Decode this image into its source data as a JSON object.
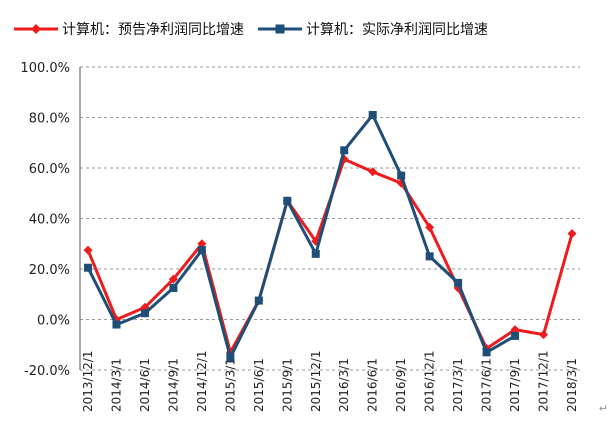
{
  "chart_data": {
    "type": "line",
    "title": "",
    "xlabel": "",
    "ylabel": "",
    "categories": [
      "2013/12/1",
      "2014/3/1",
      "2014/6/1",
      "2014/9/1",
      "2014/12/1",
      "2015/3/1",
      "2015/6/1",
      "2015/9/1",
      "2015/12/1",
      "2016/3/1",
      "2016/6/1",
      "2016/9/1",
      "2016/12/1",
      "2017/3/1",
      "2017/6/1",
      "2017/9/1",
      "2017/12/1",
      "2018/3/1"
    ],
    "yticks": [
      "100.0%",
      "80.0%",
      "60.0%",
      "40.0%",
      "20.0%",
      "0.0%",
      "-20.0%"
    ],
    "ylim": [
      -20,
      100
    ],
    "y_unit": "%",
    "grid": "horizontal dashed",
    "legend_position": "top",
    "series": [
      {
        "name": "计算机：预告净利润同比增速",
        "color": "#ee1c1c",
        "marker": "diamond",
        "values": [
          27.5,
          0,
          4.8,
          16,
          30,
          -13,
          7.5,
          47,
          31,
          63.5,
          58.5,
          54,
          36.5,
          12.5,
          -11.5,
          -4,
          -6,
          34
        ]
      },
      {
        "name": "计算机：实际净利润同比增速",
        "color": "#1f4e79",
        "marker": "square",
        "values": [
          20.5,
          -2,
          2.5,
          12.5,
          27.5,
          -15,
          7.5,
          47,
          26,
          67,
          81,
          57,
          25,
          14.5,
          -13,
          -6.5,
          null,
          null
        ]
      }
    ]
  },
  "page": {
    "return_glyph": "↵"
  }
}
